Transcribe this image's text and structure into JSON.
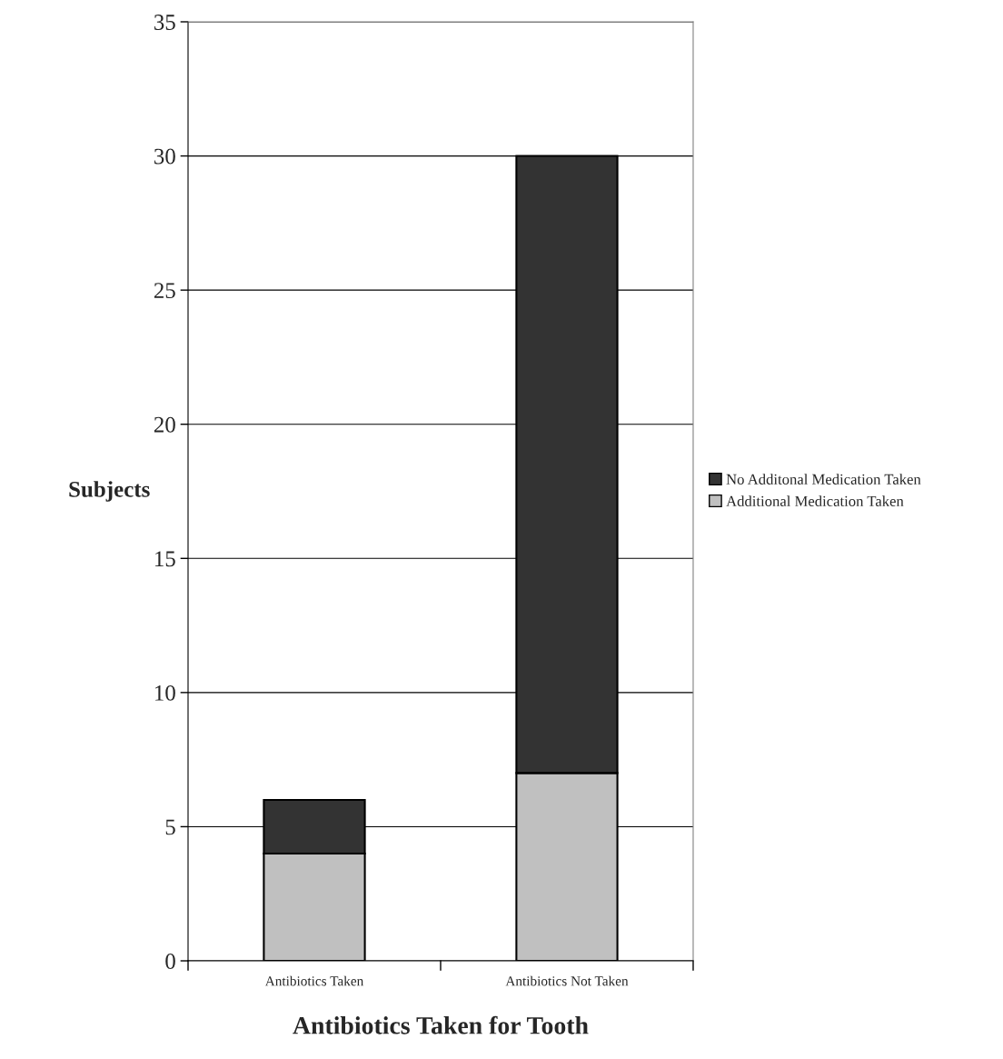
{
  "chart_data": {
    "type": "bar",
    "stacked": true,
    "xlabel": "Antibiotics Taken for Tooth",
    "ylabel": "Subjects",
    "categories": [
      "Antibiotics Taken",
      "Antibiotics Not Taken"
    ],
    "series": [
      {
        "name": "Additional Medication Taken",
        "color": "#c0c0c0",
        "values": [
          4,
          7
        ]
      },
      {
        "name": "No Additonal Medication Taken",
        "color": "#333333",
        "values": [
          2,
          23
        ]
      }
    ],
    "ylim": [
      0,
      35
    ],
    "yticks": [
      0,
      5,
      10,
      15,
      20,
      25,
      30,
      35
    ],
    "grid": "y",
    "legend": "right"
  }
}
